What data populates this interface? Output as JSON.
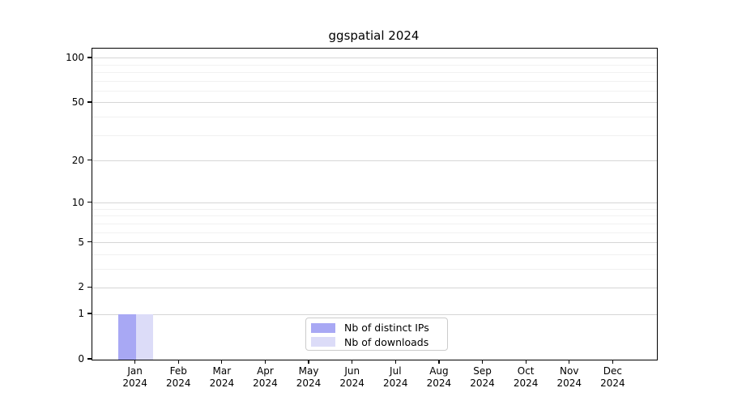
{
  "title": "ggspatial 2024",
  "chart_data": {
    "type": "bar",
    "title": "ggspatial 2024",
    "xlabel": "",
    "ylabel": "",
    "categories": [
      "Jan 2024",
      "Feb 2024",
      "Mar 2024",
      "Apr 2024",
      "May 2024",
      "Jun 2024",
      "Jul 2024",
      "Aug 2024",
      "Sep 2024",
      "Oct 2024",
      "Nov 2024",
      "Dec 2024"
    ],
    "x_tick_labels": [
      {
        "line1": "Jan",
        "line2": "2024"
      },
      {
        "line1": "Feb",
        "line2": "2024"
      },
      {
        "line1": "Mar",
        "line2": "2024"
      },
      {
        "line1": "Apr",
        "line2": "2024"
      },
      {
        "line1": "May",
        "line2": "2024"
      },
      {
        "line1": "Jun",
        "line2": "2024"
      },
      {
        "line1": "Jul",
        "line2": "2024"
      },
      {
        "line1": "Aug",
        "line2": "2024"
      },
      {
        "line1": "Sep",
        "line2": "2024"
      },
      {
        "line1": "Oct",
        "line2": "2024"
      },
      {
        "line1": "Nov",
        "line2": "2024"
      },
      {
        "line1": "Dec",
        "line2": "2024"
      }
    ],
    "series": [
      {
        "name": "Nb of distinct IPs",
        "color": "#a8a8f4",
        "values": [
          1,
          0,
          0,
          0,
          0,
          0,
          0,
          0,
          0,
          0,
          0,
          0
        ]
      },
      {
        "name": "Nb of downloads",
        "color": "#dcdcf8",
        "values": [
          1,
          0,
          0,
          0,
          0,
          0,
          0,
          0,
          0,
          0,
          0,
          0
        ]
      }
    ],
    "y_axis": {
      "scale": "log1p",
      "tick_values": [
        0,
        1,
        2,
        5,
        10,
        20,
        50,
        100
      ],
      "tick_labels": [
        "0",
        "1",
        "2",
        "5",
        "10",
        "20",
        "50",
        "100"
      ],
      "minor_gridline_values": [
        3,
        4,
        6,
        7,
        8,
        9,
        30,
        40,
        60,
        70,
        80,
        90
      ],
      "ylim": [
        0,
        116
      ],
      "grid": true
    },
    "legend": {
      "position": "bottom-center",
      "entries": [
        {
          "label": "Nb of distinct IPs",
          "color": "#a8a8f4"
        },
        {
          "label": "Nb of downloads",
          "color": "#dcdcf8"
        }
      ]
    },
    "colors": {
      "spine": "#000000",
      "major_grid": "#d6d6d6",
      "minor_grid": "#f1f1f1",
      "legend_border": "#cccccc",
      "background": "#ffffff"
    }
  }
}
